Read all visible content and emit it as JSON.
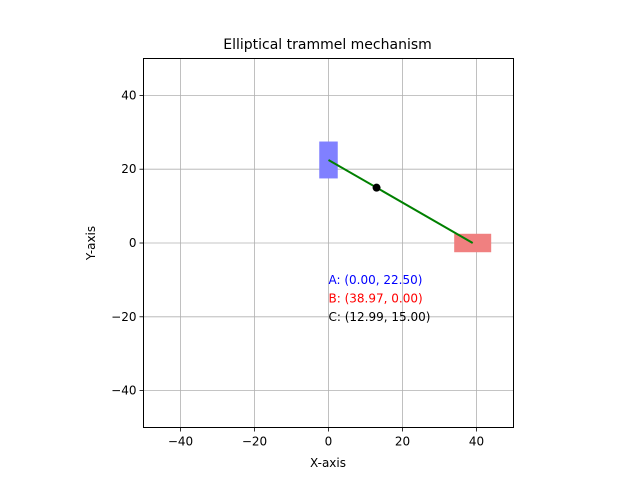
{
  "chart_data": {
    "type": "line",
    "title": "Elliptical trammel mechanism",
    "xlabel": "X-axis",
    "ylabel": "Y-axis",
    "xlim": [
      -50,
      50
    ],
    "ylim": [
      -50,
      50
    ],
    "xticks": [
      -40,
      -20,
      0,
      20,
      40
    ],
    "yticks": [
      -40,
      -20,
      0,
      20,
      40
    ],
    "xtick_labels": [
      "−40",
      "−20",
      "0",
      "20",
      "40"
    ],
    "ytick_labels": [
      "−40",
      "−20",
      "0",
      "20",
      "40"
    ],
    "grid": true,
    "series": [
      {
        "x": [
          0.0,
          38.97
        ],
        "y": [
          22.5,
          0.0
        ],
        "color": "#008000"
      }
    ],
    "points": [
      {
        "name": "A",
        "x": 0.0,
        "y": 22.5
      },
      {
        "name": "B",
        "x": 38.97,
        "y": 0.0
      },
      {
        "name": "C",
        "x": 12.99,
        "y": 15.0,
        "color": "#000000"
      }
    ],
    "sliders": [
      {
        "x": 0.0,
        "y": 22.5,
        "w": 5,
        "h": 10,
        "color": "#8080ff"
      },
      {
        "x": 38.97,
        "y": 0.0,
        "w": 10,
        "h": 5,
        "color": "#f08080"
      }
    ],
    "annotations": [
      {
        "text": "A: (0.00, 22.50)",
        "x": 0,
        "y": -10,
        "color": "#0000ff"
      },
      {
        "text": "B: (38.97, 0.00)",
        "x": 0,
        "y": -15,
        "color": "#ff0000"
      },
      {
        "text": "C: (12.99, 15.00)",
        "x": 0,
        "y": -20,
        "color": "#000000"
      }
    ]
  }
}
